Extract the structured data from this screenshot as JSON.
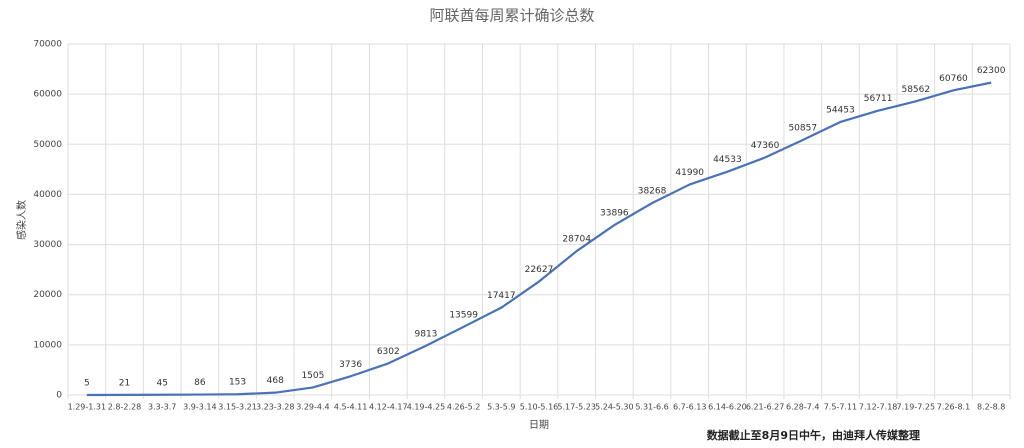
{
  "chart_data": {
    "type": "line",
    "title": "阿联酋每周累计确诊总数",
    "y_label": "感染人数",
    "x_label": "日期",
    "note": "数据截止至8月9日中午，由迪拜人传媒整理",
    "categories": [
      "1.29-1.31",
      "2.8-2.28",
      "3.3-3.7",
      "3.9-3.14",
      "3.15-3.21",
      "3.23-3.28",
      "3.29-4.4",
      "4.5-4.11",
      "4.12-4.17",
      "4.19-4.25",
      "4.26-5.2",
      "5.3-5.9",
      "5.10-5.16",
      "5.17-5.23",
      "5.24-5.30",
      "5.31-6.6",
      "6.7-6.13",
      "6.14-6.20",
      "6.21-6.27",
      "6.28-7.4",
      "7.5-7.11",
      "7.12-7.18",
      "7.19-7.25",
      "7.26-8.1",
      "8.2-8.8"
    ],
    "values": [
      5,
      21,
      45,
      86,
      153,
      468,
      1505,
      3736,
      6302,
      9813,
      13599,
      17417,
      22627,
      28704,
      33896,
      38268,
      41990,
      44533,
      47360,
      50857,
      54453,
      56711,
      58562,
      60760,
      62300
    ],
    "color": "#4a72b8",
    "ylim": [
      0,
      70000
    ],
    "yticks": [
      0,
      10000,
      20000,
      30000,
      40000,
      50000,
      60000,
      70000
    ],
    "grid": true
  }
}
